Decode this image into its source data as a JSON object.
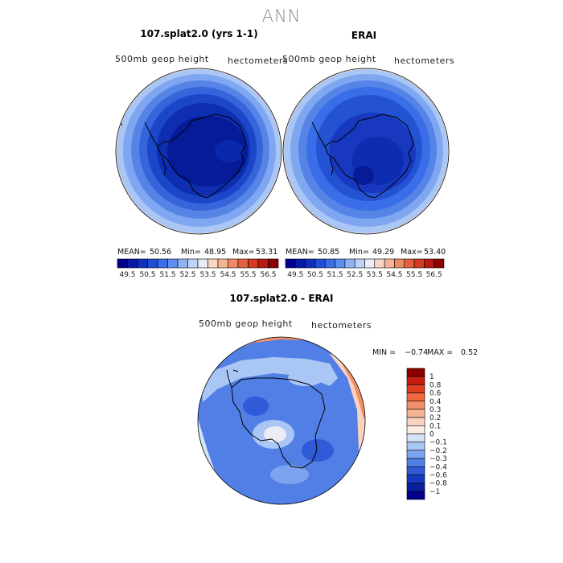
{
  "title": "ANN",
  "panels": {
    "model": {
      "title": "107.splat2.0 (yrs 1-1)",
      "variable": "500mb geop height",
      "units": "hectometers"
    },
    "obs": {
      "title": "ERAI",
      "variable": "500mb geop height",
      "units": "hectometers"
    },
    "diff": {
      "title": "107.splat2.0 - ERAI",
      "variable": "500mb geop height",
      "units": "hectometers"
    }
  },
  "stats": {
    "model": {
      "mean_label": "MEAN=",
      "mean": "50.56",
      "min_label": "Min=",
      "min": "48.95",
      "max_label": "Max=",
      "max": "53.31"
    },
    "obs": {
      "mean_label": "MEAN=",
      "mean": "50.85",
      "min_label": "Min=",
      "min": "49.29",
      "max_label": "Max=",
      "max": "53.40"
    },
    "diff": {
      "min_label": "MIN =",
      "min": "−0.74",
      "max_label": "MAX =",
      "max": "0.52"
    }
  },
  "chart_data": [
    {
      "type": "heatmap",
      "title": "107.splat2.0 (yrs 1-1)",
      "projection": "south-polar stereographic",
      "mean": 50.56,
      "min": 48.95,
      "max": 53.31,
      "colorbar": {
        "orientation": "horizontal",
        "labels": [
          "49.5",
          "50.5",
          "51.5",
          "52.5",
          "53.5",
          "54.5",
          "55.5",
          "56.5"
        ],
        "colors": [
          "#00008b",
          "#0a1aa6",
          "#1230c0",
          "#1f4fd6",
          "#3a6ee8",
          "#5f8ef0",
          "#8fb3f5",
          "#bcd4f8",
          "#ececf6",
          "#f8d8c4",
          "#f5b494",
          "#ef8a64",
          "#e5603e",
          "#d53a22",
          "#b81a10",
          "#8c0000"
        ]
      }
    },
    {
      "type": "heatmap",
      "title": "ERAI",
      "projection": "south-polar stereographic",
      "mean": 50.85,
      "min": 49.29,
      "max": 53.4,
      "colorbar": {
        "orientation": "horizontal",
        "labels": [
          "49.5",
          "50.5",
          "51.5",
          "52.5",
          "53.5",
          "54.5",
          "55.5",
          "56.5"
        ],
        "colors": [
          "#00008b",
          "#0a1aa6",
          "#1230c0",
          "#1f4fd6",
          "#3a6ee8",
          "#5f8ef0",
          "#8fb3f5",
          "#bcd4f8",
          "#ececf6",
          "#f8d8c4",
          "#f5b494",
          "#ef8a64",
          "#e5603e",
          "#d53a22",
          "#b81a10",
          "#8c0000"
        ]
      }
    },
    {
      "type": "heatmap",
      "title": "107.splat2.0 - ERAI",
      "projection": "south-polar stereographic",
      "min": -0.74,
      "max": 0.52,
      "colorbar": {
        "orientation": "vertical",
        "labels": [
          "1",
          "0.8",
          "0.6",
          "0.4",
          "0.3",
          "0.2",
          "0.1",
          "0",
          "−0.1",
          "−0.2",
          "−0.3",
          "−0.4",
          "−0.6",
          "−0.8",
          "−1"
        ],
        "colors": [
          "#8c0000",
          "#c41e0e",
          "#e0401f",
          "#ef6a40",
          "#f3906a",
          "#f6b494",
          "#f8d3bf",
          "#faeee4",
          "#d4e3f8",
          "#a9c6f5",
          "#7ba3ef",
          "#527fe6",
          "#2f5ad8",
          "#173bc0",
          "#0a1f9e",
          "#00008b"
        ]
      }
    }
  ]
}
